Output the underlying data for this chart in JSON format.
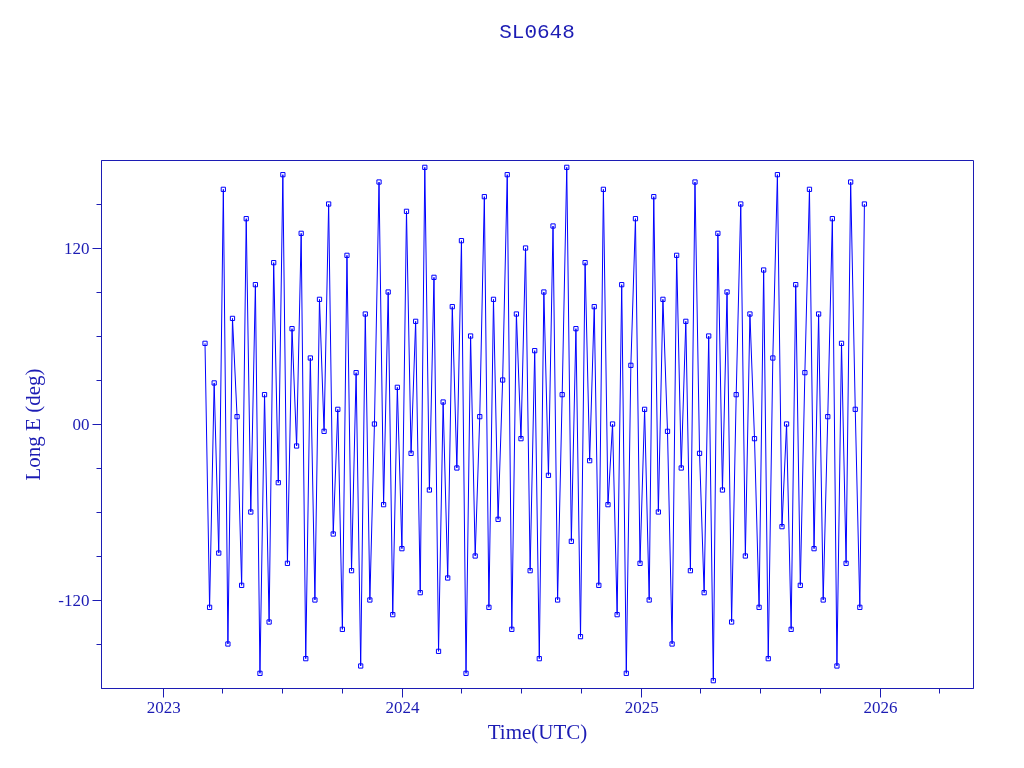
{
  "chart_data": {
    "type": "line",
    "title": "SL0648",
    "xlabel": "Time(UTC)",
    "ylabel": "Long E (deg)",
    "color": "#0000ff",
    "marker": "square",
    "line_style": "solid",
    "xlim": [
      "2022-09-28",
      "2026-05-23"
    ],
    "ylim": [
      -180,
      180
    ],
    "xticks": [
      "2023",
      {
        "value": "2023-04",
        "label": null
      },
      {
        "value": "2023-07",
        "label": null
      },
      {
        "value": "2023-10",
        "label": null
      },
      "2024",
      {
        "value": "2024-04",
        "label": null
      },
      {
        "value": "2024-07",
        "label": null
      },
      {
        "value": "2024-10",
        "label": null
      },
      "2025",
      {
        "value": "2025-04",
        "label": null
      },
      {
        "value": "2025-07",
        "label": null
      },
      {
        "value": "2025-10",
        "label": null
      },
      "2026",
      {
        "value": "2026-04",
        "label": null
      }
    ],
    "yticks": [
      {
        "value": -150,
        "label": null
      },
      -120,
      {
        "value": -90,
        "label": null
      },
      {
        "value": -60,
        "label": null
      },
      {
        "value": -30,
        "label": null
      },
      {
        "value": 0,
        "label": "00"
      },
      {
        "value": 30,
        "label": null
      },
      {
        "value": 60,
        "label": null
      },
      {
        "value": 90,
        "label": null
      },
      120,
      {
        "value": 150,
        "label": null
      }
    ],
    "x": [
      "2023-03-06",
      "2023-03-13",
      "2023-03-20",
      "2023-03-27",
      "2023-04-03",
      "2023-04-10",
      "2023-04-17",
      "2023-04-24",
      "2023-05-01",
      "2023-05-08",
      "2023-05-15",
      "2023-05-22",
      "2023-05-29",
      "2023-06-05",
      "2023-06-12",
      "2023-06-19",
      "2023-06-26",
      "2023-07-03",
      "2023-07-10",
      "2023-07-17",
      "2023-07-24",
      "2023-07-31",
      "2023-08-07",
      "2023-08-14",
      "2023-08-21",
      "2023-08-28",
      "2023-09-04",
      "2023-09-11",
      "2023-09-18",
      "2023-09-25",
      "2023-10-02",
      "2023-10-09",
      "2023-10-16",
      "2023-10-23",
      "2023-10-30",
      "2023-11-06",
      "2023-11-13",
      "2023-11-20",
      "2023-11-27",
      "2023-12-04",
      "2023-12-11",
      "2023-12-18",
      "2023-12-25",
      "2024-01-01",
      "2024-01-08",
      "2024-01-15",
      "2024-01-22",
      "2024-01-29",
      "2024-02-05",
      "2024-02-12",
      "2024-02-19",
      "2024-02-26",
      "2024-03-04",
      "2024-03-11",
      "2024-03-18",
      "2024-03-25",
      "2024-04-01",
      "2024-04-08",
      "2024-04-15",
      "2024-04-22",
      "2024-04-29",
      "2024-05-06",
      "2024-05-13",
      "2024-05-20",
      "2024-05-27",
      "2024-06-03",
      "2024-06-10",
      "2024-06-17",
      "2024-06-24",
      "2024-07-01",
      "2024-07-08",
      "2024-07-15",
      "2024-07-22",
      "2024-07-29",
      "2024-08-05",
      "2024-08-12",
      "2024-08-19",
      "2024-08-26",
      "2024-09-02",
      "2024-09-09",
      "2024-09-16",
      "2024-09-23",
      "2024-09-30",
      "2024-10-07",
      "2024-10-14",
      "2024-10-21",
      "2024-10-28",
      "2024-11-04",
      "2024-11-11",
      "2024-11-18",
      "2024-11-25",
      "2024-12-02",
      "2024-12-09",
      "2024-12-16",
      "2024-12-23",
      "2024-12-30",
      "2025-01-06",
      "2025-01-13",
      "2025-01-20",
      "2025-01-27",
      "2025-02-03",
      "2025-02-10",
      "2025-02-17",
      "2025-02-24",
      "2025-03-03",
      "2025-03-10",
      "2025-03-17",
      "2025-03-24",
      "2025-03-31",
      "2025-04-07",
      "2025-04-14",
      "2025-04-21",
      "2025-04-28",
      "2025-05-05",
      "2025-05-12",
      "2025-05-19",
      "2025-05-26",
      "2025-06-02",
      "2025-06-09",
      "2025-06-16",
      "2025-06-23",
      "2025-06-30",
      "2025-07-07",
      "2025-07-14",
      "2025-07-21",
      "2025-07-28",
      "2025-08-04",
      "2025-08-11",
      "2025-08-18",
      "2025-08-25",
      "2025-09-01",
      "2025-09-08",
      "2025-09-15",
      "2025-09-22",
      "2025-09-29",
      "2025-10-06",
      "2025-10-13",
      "2025-10-20",
      "2025-10-27",
      "2025-11-03",
      "2025-11-10",
      "2025-11-17",
      "2025-11-24",
      "2025-12-01",
      "2025-12-08"
    ],
    "values": [
      55,
      -125,
      28,
      -88,
      160,
      -150,
      72,
      5,
      -110,
      140,
      -60,
      95,
      -170,
      20,
      -135,
      110,
      -40,
      170,
      -95,
      65,
      -15,
      130,
      -160,
      45,
      -120,
      85,
      -5,
      150,
      -75,
      10,
      -140,
      115,
      -100,
      35,
      -165,
      75,
      -120,
      0,
      165,
      -55,
      90,
      -130,
      25,
      -85,
      145,
      -20,
      70,
      -115,
      175,
      -45,
      100,
      -155,
      15,
      -105,
      80,
      -30,
      125,
      -170,
      60,
      -90,
      5,
      155,
      -125,
      85,
      -65,
      30,
      170,
      -140,
      75,
      -10,
      120,
      -100,
      50,
      -160,
      90,
      -35,
      135,
      -120,
      20,
      175,
      -80,
      65,
      -145,
      110,
      -25,
      80,
      -110,
      160,
      -55,
      0,
      -130,
      95,
      -170,
      40,
      140,
      -95,
      10,
      -120,
      155,
      -60,
      85,
      -5,
      -150,
      115,
      -30,
      70,
      -100,
      165,
      -20,
      -115,
      60,
      -175,
      130,
      -45,
      90,
      -135,
      20,
      150,
      -90,
      75,
      -10,
      -125,
      105,
      -160,
      45,
      170,
      -70,
      0,
      -140,
      95,
      -110,
      35,
      160,
      -85,
      75,
      -120,
      5,
      140,
      -165,
      55,
      -95,
      165,
      10,
      -125,
      150
    ]
  }
}
